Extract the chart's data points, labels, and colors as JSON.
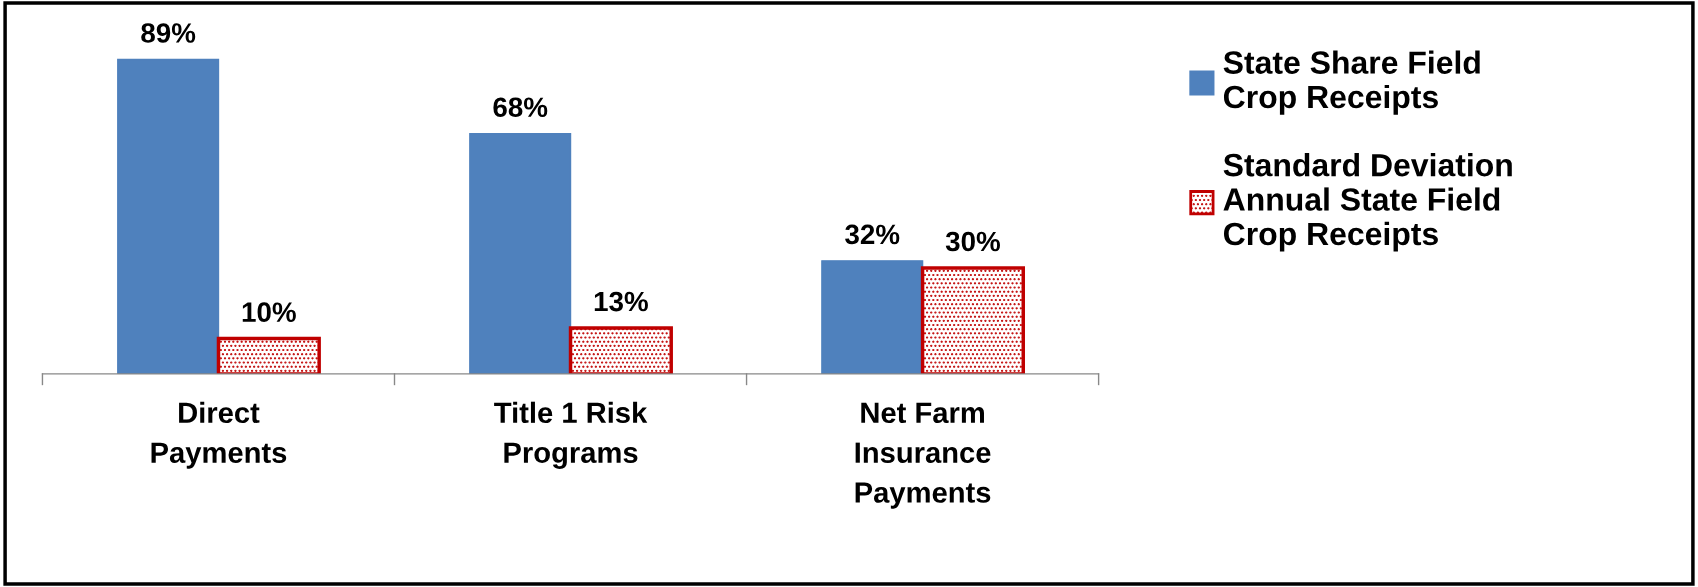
{
  "chart_data": {
    "type": "bar",
    "categories": [
      "Direct\nPayments",
      "Title 1 Risk\nPrograms",
      "Net Farm\nInsurance\nPayments"
    ],
    "series": [
      {
        "name": "State Share Field\nCrop Receipts",
        "color": "#4f81bd",
        "values": [
          89,
          68,
          32
        ],
        "value_labels": [
          "89%",
          "68%",
          "32%"
        ]
      },
      {
        "name": "Standard Deviation\nAnnual State Field\nCrop Receipts",
        "color": "#c00000",
        "values": [
          10,
          13,
          30
        ],
        "value_labels": [
          "10%",
          "13%",
          "30%"
        ]
      }
    ],
    "legend": "right",
    "grid": false,
    "tick_labels": "x"
  }
}
